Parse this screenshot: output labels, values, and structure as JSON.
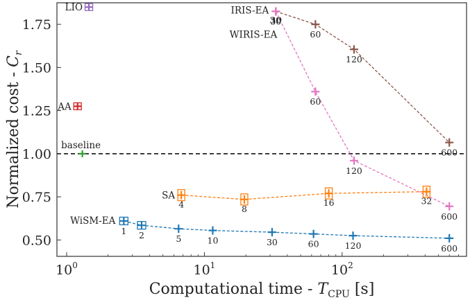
{
  "chart_data": {
    "type": "scatter",
    "xlabel": "Computational time - ",
    "xlabel_symbol": "T",
    "xlabel_sub": "CPU",
    "xlabel_unit": " [s]",
    "ylabel": "Normalized cost - ",
    "ylabel_symbol": "C",
    "ylabel_sub": "r",
    "xscale": "log",
    "xlim": [
      0.85,
      800
    ],
    "ylim": [
      0.405,
      1.875
    ],
    "xticks": [
      {
        "value": 1,
        "label": "10",
        "exp": "0"
      },
      {
        "value": 10,
        "label": "10",
        "exp": "1"
      },
      {
        "value": 100,
        "label": "10",
        "exp": "2"
      }
    ],
    "yticks": [
      {
        "value": 0.5,
        "label": "0.50"
      },
      {
        "value": 0.75,
        "label": "0.75"
      },
      {
        "value": 1.0,
        "label": "1.00"
      },
      {
        "value": 1.25,
        "label": "1.25"
      },
      {
        "value": 1.5,
        "label": "1.50"
      },
      {
        "value": 1.75,
        "label": "1.75"
      }
    ],
    "baseline": {
      "y": 1.0,
      "label": "baseline",
      "x": 1.3,
      "color": "#2ca02c"
    },
    "single_points": [
      {
        "name": "LIO",
        "x": 1.45,
        "y": 1.85,
        "color": "#9467bd"
      },
      {
        "name": "AA",
        "x": 1.2,
        "y": 1.275,
        "color": "#d62728"
      }
    ],
    "series": [
      {
        "name": "IRIS-EA",
        "color": "#8c564b",
        "points": [
          {
            "x": 33,
            "y": 1.825,
            "label": "30"
          },
          {
            "x": 64,
            "y": 1.75,
            "label": "60"
          },
          {
            "x": 122,
            "y": 1.605,
            "label": "120"
          },
          {
            "x": 600,
            "y": 1.065,
            "label": "600"
          }
        ]
      },
      {
        "name": "WIRIS-EA",
        "color": "#e377c2",
        "points": [
          {
            "x": 33,
            "y": 1.825,
            "label": "30"
          },
          {
            "x": 64,
            "y": 1.36,
            "label": "60"
          },
          {
            "x": 122,
            "y": 0.96,
            "label": "120"
          },
          {
            "x": 600,
            "y": 0.695,
            "label": "600"
          }
        ]
      },
      {
        "name": "SA",
        "color": "#ff7f0e",
        "points": [
          {
            "x": 6.8,
            "y": 0.76,
            "label": "4"
          },
          {
            "x": 19.5,
            "y": 0.735,
            "label": "8"
          },
          {
            "x": 80,
            "y": 0.77,
            "label": "16"
          },
          {
            "x": 410,
            "y": 0.78,
            "label": "32"
          }
        ]
      },
      {
        "name": "WiSM-EA",
        "color": "#1f77b4",
        "points": [
          {
            "x": 2.6,
            "y": 0.61,
            "label": "1"
          },
          {
            "x": 3.5,
            "y": 0.585,
            "label": "2"
          },
          {
            "x": 6.5,
            "y": 0.565,
            "label": "5"
          },
          {
            "x": 11.5,
            "y": 0.555,
            "label": "10"
          },
          {
            "x": 31,
            "y": 0.545,
            "label": "30"
          },
          {
            "x": 62,
            "y": 0.535,
            "label": "60"
          },
          {
            "x": 120,
            "y": 0.525,
            "label": "120"
          },
          {
            "x": 600,
            "y": 0.51,
            "label": "600"
          }
        ]
      }
    ]
  }
}
